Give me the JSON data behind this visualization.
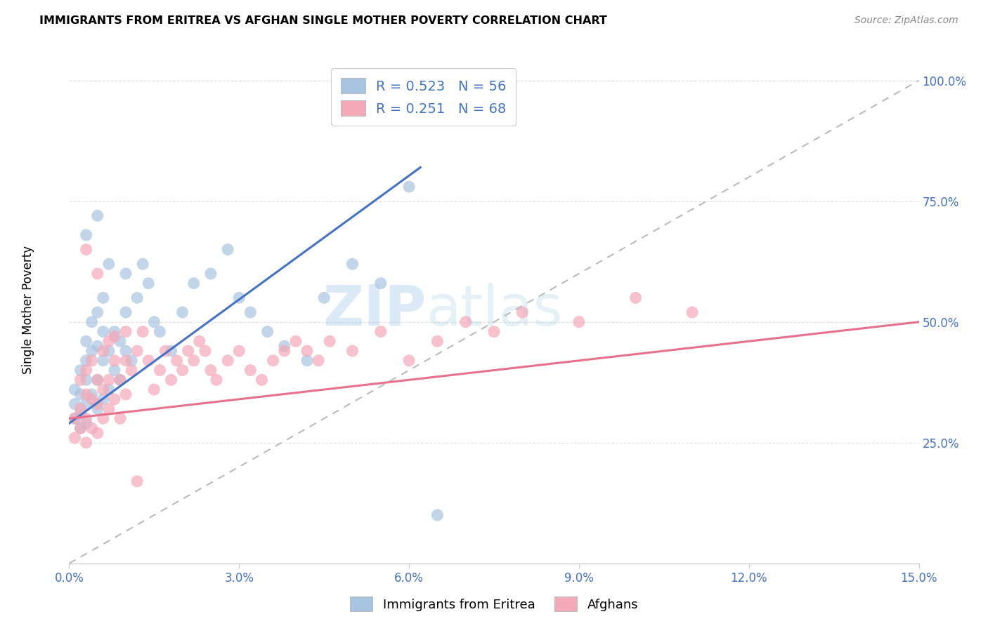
{
  "title": "IMMIGRANTS FROM ERITREA VS AFGHAN SINGLE MOTHER POVERTY CORRELATION CHART",
  "source": "Source: ZipAtlas.com",
  "ylabel": "Single Mother Poverty",
  "color_eritrea": "#a8c4e0",
  "color_afghan": "#f4a8b8",
  "color_line_eritrea": "#4472c4",
  "color_line_afghan": "#e8708a",
  "color_axis_blue": "#4472c4",
  "color_tick_label": "#4472c4",
  "color_grid": "#e0e0e0",
  "color_ref_line": "#bbbbbb",
  "color_watermark": "#ccdff0",
  "xlim": [
    0.0,
    0.15
  ],
  "ylim": [
    0.0,
    1.05
  ],
  "x_ticks": [
    0.0,
    0.03,
    0.06,
    0.09,
    0.12,
    0.15
  ],
  "x_tick_labels": [
    "0.0%",
    "3.0%",
    "6.0%",
    "9.0%",
    "12.0%",
    "15.0%"
  ],
  "y_ticks": [
    0.25,
    0.5,
    0.75,
    1.0
  ],
  "y_tick_labels": [
    "25.0%",
    "50.0%",
    "75.0%",
    "100.0%"
  ],
  "eritrea_line_x": [
    0.0,
    0.062
  ],
  "eritrea_line_y": [
    0.29,
    0.82
  ],
  "afghan_line_x": [
    0.0,
    0.15
  ],
  "afghan_line_y": [
    0.3,
    0.5
  ],
  "ref_line_x": [
    0.0,
    0.15
  ],
  "ref_line_y": [
    0.0,
    1.0
  ],
  "eritrea_x": [
    0.001,
    0.001,
    0.001,
    0.002,
    0.002,
    0.002,
    0.002,
    0.003,
    0.003,
    0.003,
    0.003,
    0.003,
    0.004,
    0.004,
    0.004,
    0.005,
    0.005,
    0.005,
    0.005,
    0.006,
    0.006,
    0.006,
    0.006,
    0.007,
    0.007,
    0.007,
    0.008,
    0.008,
    0.009,
    0.009,
    0.01,
    0.01,
    0.01,
    0.011,
    0.012,
    0.013,
    0.014,
    0.015,
    0.016,
    0.018,
    0.02,
    0.022,
    0.025,
    0.028,
    0.03,
    0.032,
    0.035,
    0.038,
    0.042,
    0.045,
    0.05,
    0.055,
    0.06,
    0.065,
    0.005,
    0.003
  ],
  "eritrea_y": [
    0.3,
    0.33,
    0.36,
    0.28,
    0.31,
    0.35,
    0.4,
    0.29,
    0.33,
    0.38,
    0.42,
    0.46,
    0.35,
    0.44,
    0.5,
    0.32,
    0.38,
    0.45,
    0.52,
    0.34,
    0.42,
    0.48,
    0.55,
    0.36,
    0.44,
    0.62,
    0.4,
    0.48,
    0.38,
    0.46,
    0.44,
    0.52,
    0.6,
    0.42,
    0.55,
    0.62,
    0.58,
    0.5,
    0.48,
    0.44,
    0.52,
    0.58,
    0.6,
    0.65,
    0.55,
    0.52,
    0.48,
    0.45,
    0.42,
    0.55,
    0.62,
    0.58,
    0.78,
    0.1,
    0.72,
    0.68
  ],
  "afghan_x": [
    0.001,
    0.001,
    0.002,
    0.002,
    0.002,
    0.003,
    0.003,
    0.003,
    0.003,
    0.004,
    0.004,
    0.004,
    0.005,
    0.005,
    0.005,
    0.006,
    0.006,
    0.006,
    0.007,
    0.007,
    0.007,
    0.008,
    0.008,
    0.009,
    0.009,
    0.01,
    0.01,
    0.01,
    0.011,
    0.012,
    0.013,
    0.014,
    0.015,
    0.016,
    0.017,
    0.018,
    0.019,
    0.02,
    0.021,
    0.022,
    0.023,
    0.024,
    0.025,
    0.026,
    0.028,
    0.03,
    0.032,
    0.034,
    0.036,
    0.038,
    0.04,
    0.042,
    0.044,
    0.046,
    0.05,
    0.055,
    0.06,
    0.065,
    0.07,
    0.075,
    0.08,
    0.09,
    0.1,
    0.11,
    0.003,
    0.005,
    0.008,
    0.012
  ],
  "afghan_y": [
    0.26,
    0.3,
    0.28,
    0.32,
    0.38,
    0.25,
    0.3,
    0.35,
    0.4,
    0.28,
    0.34,
    0.42,
    0.27,
    0.33,
    0.38,
    0.3,
    0.36,
    0.44,
    0.32,
    0.38,
    0.46,
    0.34,
    0.42,
    0.3,
    0.38,
    0.35,
    0.42,
    0.48,
    0.4,
    0.44,
    0.48,
    0.42,
    0.36,
    0.4,
    0.44,
    0.38,
    0.42,
    0.4,
    0.44,
    0.42,
    0.46,
    0.44,
    0.4,
    0.38,
    0.42,
    0.44,
    0.4,
    0.38,
    0.42,
    0.44,
    0.46,
    0.44,
    0.42,
    0.46,
    0.44,
    0.48,
    0.42,
    0.46,
    0.5,
    0.48,
    0.52,
    0.5,
    0.55,
    0.52,
    0.65,
    0.6,
    0.47,
    0.17
  ],
  "legend1_r": "0.523",
  "legend1_n": "56",
  "legend2_r": "0.251",
  "legend2_n": "68"
}
